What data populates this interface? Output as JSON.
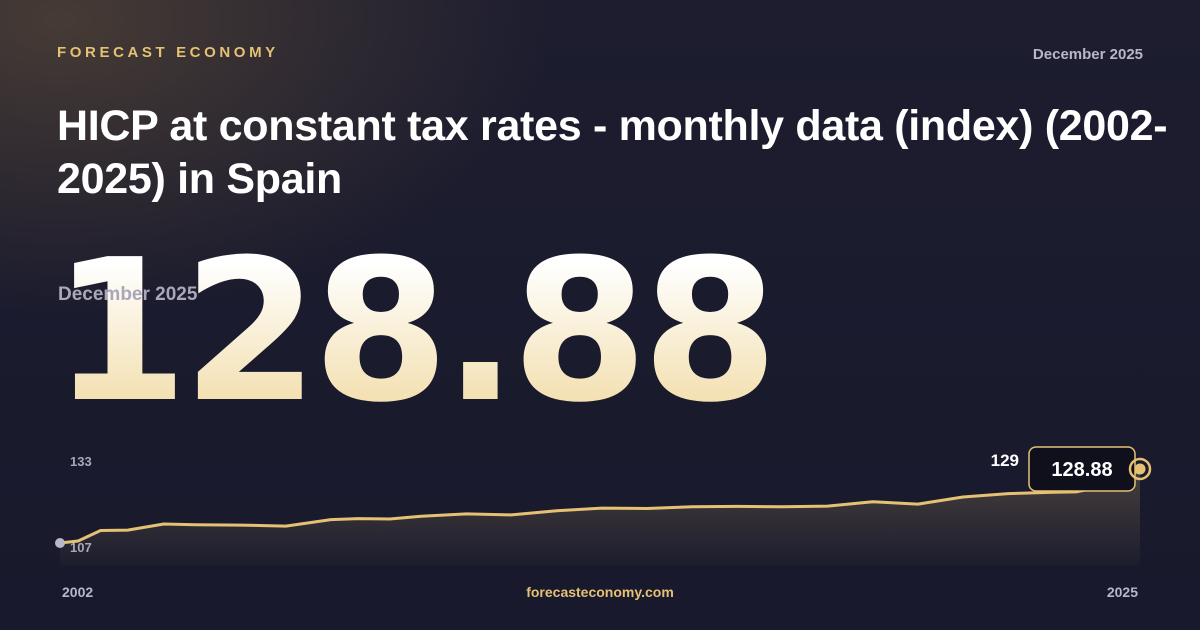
{
  "header": {
    "brand": "FORECAST ECONOMY",
    "date": "December 2025",
    "title": "HICP at constant tax rates - monthly data (index) (2002-2025) in Spain"
  },
  "headline": {
    "value": "128.88",
    "date": "December 2025"
  },
  "footer": {
    "start_year": "2002",
    "site": "forecasteconomy.com",
    "end_year": "2025"
  },
  "colors": {
    "accent": "#e5c174",
    "background": "#1a1b2e",
    "muted": "#b9b6c9"
  },
  "chart_data": {
    "type": "area",
    "x_range": [
      "2002-01",
      "2025-12"
    ],
    "ylim": [
      107,
      133
    ],
    "y_tick_labels": [
      "133",
      "107"
    ],
    "x_tick_labels": [
      "2002",
      "2025"
    ],
    "peak_label": "129",
    "last_value_label": "128.88",
    "grid": false,
    "legend": "none",
    "series": [
      {
        "x": [
          2002.0,
          2002.4,
          2002.9,
          2003.5,
          2004.3,
          2005.0,
          2006.0,
          2007.0,
          2008.0,
          2008.6,
          2009.3,
          2010.0,
          2011.0,
          2012.0,
          2013.0,
          2014.0,
          2015.0,
          2016.0,
          2017.0,
          2018.0,
          2019.0,
          2020.0,
          2021.0,
          2022.0,
          2023.0,
          2024.0,
          2024.5,
          2025.0,
          2025.4,
          2025.92
        ],
        "y": [
          107.0,
          107.6,
          110.7,
          110.8,
          112.6,
          112.4,
          112.3,
          112.0,
          113.9,
          114.2,
          114.1,
          114.9,
          115.6,
          115.3,
          116.5,
          117.3,
          117.2,
          117.7,
          117.8,
          117.7,
          117.9,
          119.2,
          118.5,
          120.6,
          121.6,
          122.0,
          122.1,
          123.4,
          123.5,
          128.88
        ]
      }
    ]
  }
}
